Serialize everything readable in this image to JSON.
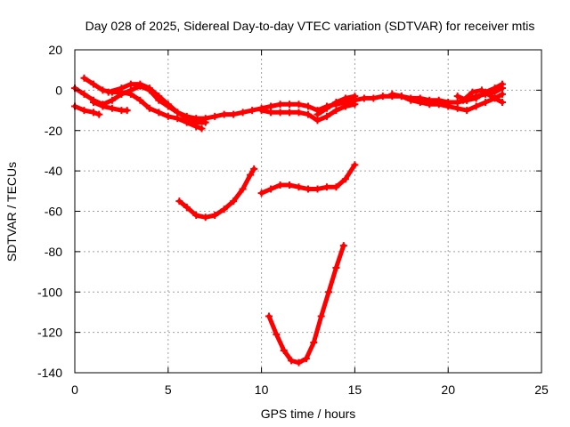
{
  "chart_data": {
    "type": "scatter",
    "title": "Day 028 of 2025, Sidereal Day-to-day VTEC variation (SDTVAR) for receiver mtis",
    "xlabel": "GPS time / hours",
    "ylabel": "SDTVAR / TECUs",
    "xlim": [
      0,
      25
    ],
    "ylim": [
      -140,
      20
    ],
    "x_ticks": [
      0,
      5,
      10,
      15,
      20,
      25
    ],
    "y_ticks": [
      20,
      0,
      -20,
      -40,
      -60,
      -80,
      -100,
      -120,
      -140
    ],
    "x_tick_labels": [
      "0",
      "5",
      "10",
      "15",
      "20",
      "25"
    ],
    "y_tick_labels": [
      "20",
      "0",
      "-20",
      "-40",
      "-60",
      "-80",
      "-100",
      "-120",
      "-140"
    ],
    "grid": true,
    "series_color": "#ff0000",
    "series": [
      {
        "name": "track-main-a",
        "points": [
          [
            0.0,
            1
          ],
          [
            0.5,
            -2
          ],
          [
            1.0,
            -5
          ],
          [
            1.5,
            -7
          ],
          [
            2.0,
            -5
          ],
          [
            2.5,
            -2
          ],
          [
            3.0,
            0
          ],
          [
            3.5,
            2
          ],
          [
            4.0,
            0
          ],
          [
            4.5,
            -5
          ],
          [
            5.0,
            -8
          ],
          [
            5.5,
            -11
          ],
          [
            6.0,
            -13
          ],
          [
            6.5,
            -14
          ],
          [
            7.0,
            -14
          ],
          [
            7.5,
            -13
          ],
          [
            8.0,
            -12
          ],
          [
            8.5,
            -12
          ],
          [
            9.0,
            -11
          ],
          [
            9.5,
            -10
          ],
          [
            10.0,
            -9
          ],
          [
            10.5,
            -8
          ],
          [
            11.0,
            -7
          ],
          [
            11.5,
            -7
          ],
          [
            12.0,
            -7
          ],
          [
            12.5,
            -8
          ],
          [
            13.0,
            -10
          ],
          [
            13.5,
            -8
          ],
          [
            14.0,
            -7
          ],
          [
            14.5,
            -6
          ],
          [
            15.0,
            -5
          ],
          [
            15.5,
            -4
          ],
          [
            16.0,
            -4
          ],
          [
            16.5,
            -3
          ],
          [
            17.0,
            -3
          ],
          [
            17.5,
            -3
          ],
          [
            18.0,
            -4
          ],
          [
            18.5,
            -4
          ],
          [
            19.0,
            -5
          ],
          [
            19.5,
            -5
          ],
          [
            20.0,
            -6
          ],
          [
            20.5,
            -6
          ],
          [
            21.0,
            -5
          ],
          [
            21.5,
            -3
          ],
          [
            22.0,
            -2
          ],
          [
            22.5,
            -1
          ],
          [
            22.9,
            1
          ]
        ]
      },
      {
        "name": "track-main-b",
        "points": [
          [
            0.0,
            -8
          ],
          [
            0.5,
            -10
          ],
          [
            1.0,
            -11
          ],
          [
            1.3,
            -12
          ]
        ]
      },
      {
        "name": "track-main-c",
        "points": [
          [
            0.5,
            6
          ],
          [
            1.0,
            3
          ],
          [
            1.5,
            0
          ],
          [
            2.0,
            -1
          ],
          [
            2.5,
            -1
          ],
          [
            3.0,
            -2
          ],
          [
            3.5,
            -5
          ],
          [
            4.0,
            -9
          ],
          [
            4.5,
            -11
          ],
          [
            5.0,
            -13
          ],
          [
            5.5,
            -14
          ],
          [
            6.0,
            -16
          ],
          [
            6.5,
            -18
          ],
          [
            6.8,
            -19
          ]
        ]
      },
      {
        "name": "track-main-d",
        "points": [
          [
            1.0,
            -6
          ],
          [
            1.5,
            -8
          ],
          [
            2.0,
            -9
          ],
          [
            2.5,
            -10
          ],
          [
            2.8,
            -10
          ]
        ]
      },
      {
        "name": "track-main-e",
        "points": [
          [
            1.8,
            -1
          ],
          [
            2.5,
            1
          ],
          [
            3.0,
            3
          ],
          [
            3.5,
            3
          ],
          [
            4.0,
            1
          ],
          [
            4.5,
            -3
          ],
          [
            5.0,
            -7
          ],
          [
            5.5,
            -11
          ],
          [
            6.0,
            -14
          ],
          [
            6.5,
            -16
          ],
          [
            7.0,
            -16
          ]
        ]
      },
      {
        "name": "track-main-f",
        "points": [
          [
            10.0,
            -10
          ],
          [
            10.5,
            -11
          ],
          [
            11.0,
            -11
          ],
          [
            11.5,
            -11
          ],
          [
            12.0,
            -11
          ],
          [
            12.5,
            -12
          ],
          [
            13.0,
            -15
          ],
          [
            13.5,
            -13
          ],
          [
            14.0,
            -10
          ],
          [
            14.5,
            -8
          ],
          [
            15.0,
            -7
          ]
        ]
      },
      {
        "name": "track-main-g",
        "points": [
          [
            13.0,
            -12
          ],
          [
            13.5,
            -9
          ],
          [
            14.0,
            -6
          ],
          [
            14.5,
            -4
          ],
          [
            15.0,
            -3
          ]
        ]
      },
      {
        "name": "track-main-h",
        "points": [
          [
            17.0,
            -2
          ],
          [
            17.5,
            -3
          ],
          [
            18.0,
            -5
          ],
          [
            18.5,
            -6
          ],
          [
            19.0,
            -7
          ],
          [
            19.5,
            -7
          ],
          [
            20.0,
            -8
          ],
          [
            20.5,
            -9
          ],
          [
            21.0,
            -10
          ],
          [
            21.5,
            -8
          ],
          [
            22.0,
            -6
          ],
          [
            22.5,
            -4
          ],
          [
            22.9,
            -2
          ]
        ]
      },
      {
        "name": "track-main-i",
        "points": [
          [
            20.5,
            -3
          ],
          [
            21.0,
            -5
          ],
          [
            21.5,
            -4
          ],
          [
            22.0,
            -1
          ],
          [
            22.5,
            1
          ],
          [
            22.9,
            3
          ]
        ]
      },
      {
        "name": "track-main-j",
        "points": [
          [
            20.8,
            -5
          ],
          [
            21.3,
            -1
          ],
          [
            21.8,
            0
          ],
          [
            22.3,
            -3
          ],
          [
            22.9,
            -6
          ]
        ]
      },
      {
        "name": "track-arc-left",
        "points": [
          [
            5.6,
            -55
          ],
          [
            6.0,
            -58
          ],
          [
            6.5,
            -62
          ],
          [
            7.0,
            -63
          ],
          [
            7.5,
            -62
          ],
          [
            8.0,
            -59
          ],
          [
            8.5,
            -55
          ],
          [
            9.0,
            -49
          ],
          [
            9.4,
            -42
          ],
          [
            9.6,
            -39
          ]
        ]
      },
      {
        "name": "track-arc-mid",
        "points": [
          [
            10.0,
            -51
          ],
          [
            10.5,
            -49
          ],
          [
            11.0,
            -47
          ],
          [
            11.5,
            -47
          ],
          [
            12.0,
            -48
          ],
          [
            12.5,
            -49
          ],
          [
            13.0,
            -49
          ],
          [
            13.5,
            -48
          ],
          [
            14.0,
            -48
          ],
          [
            14.5,
            -44
          ],
          [
            15.0,
            -37
          ]
        ]
      },
      {
        "name": "track-arc-deep",
        "points": [
          [
            10.4,
            -112
          ],
          [
            10.8,
            -121
          ],
          [
            11.2,
            -129
          ],
          [
            11.6,
            -134
          ],
          [
            12.0,
            -135
          ],
          [
            12.4,
            -133
          ],
          [
            12.8,
            -125
          ],
          [
            13.2,
            -112
          ],
          [
            13.6,
            -100
          ],
          [
            14.0,
            -88
          ],
          [
            14.4,
            -77
          ]
        ]
      }
    ]
  }
}
